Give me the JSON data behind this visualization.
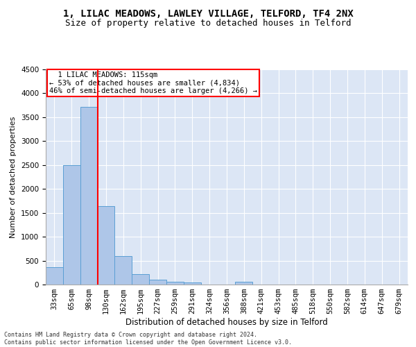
{
  "title1": "1, LILAC MEADOWS, LAWLEY VILLAGE, TELFORD, TF4 2NX",
  "title2": "Size of property relative to detached houses in Telford",
  "xlabel": "Distribution of detached houses by size in Telford",
  "ylabel": "Number of detached properties",
  "categories": [
    "33sqm",
    "65sqm",
    "98sqm",
    "130sqm",
    "162sqm",
    "195sqm",
    "227sqm",
    "259sqm",
    "291sqm",
    "324sqm",
    "356sqm",
    "388sqm",
    "421sqm",
    "453sqm",
    "485sqm",
    "518sqm",
    "550sqm",
    "582sqm",
    "614sqm",
    "647sqm",
    "679sqm"
  ],
  "values": [
    370,
    2500,
    3720,
    1640,
    590,
    220,
    105,
    65,
    40,
    0,
    0,
    65,
    0,
    0,
    0,
    0,
    0,
    0,
    0,
    0,
    0
  ],
  "bar_color": "#aec6e8",
  "bar_edge_color": "#5a9fd4",
  "bg_color": "#dce6f5",
  "grid_color": "#ffffff",
  "vline_x": 2.5,
  "vline_color": "red",
  "annotation_text": "  1 LILAC MEADOWS: 115sqm\n← 53% of detached houses are smaller (4,834)\n46% of semi-detached houses are larger (4,266) →",
  "annotation_box_color": "red",
  "ylim": [
    0,
    4500
  ],
  "yticks": [
    0,
    500,
    1000,
    1500,
    2000,
    2500,
    3000,
    3500,
    4000,
    4500
  ],
  "footnote": "Contains HM Land Registry data © Crown copyright and database right 2024.\nContains public sector information licensed under the Open Government Licence v3.0.",
  "title_fontsize": 10,
  "subtitle_fontsize": 9,
  "xlabel_fontsize": 8.5,
  "ylabel_fontsize": 8,
  "tick_fontsize": 7.5,
  "ann_fontsize": 7.5,
  "footnote_fontsize": 6
}
